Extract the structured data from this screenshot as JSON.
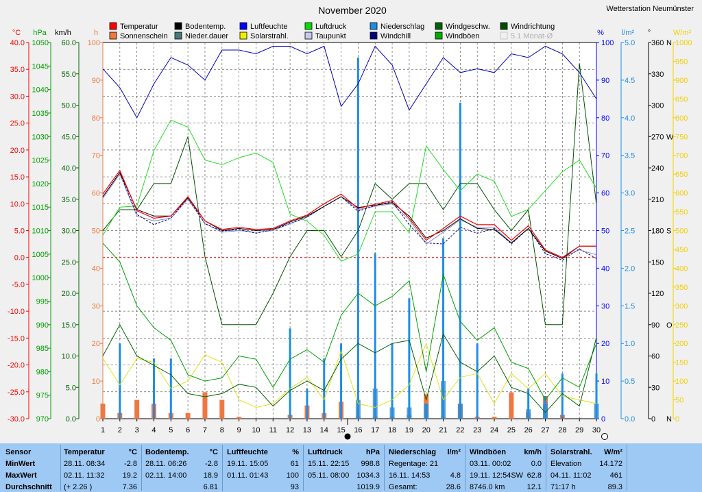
{
  "page": {
    "title": "November 2020",
    "station": "Wetterstation Neumünster"
  },
  "colors": {
    "temperature": "#ff0000",
    "ground_temp": "#000000",
    "humidity": "#0000ff",
    "pressure": "#00d800",
    "precipitation": "#1e8ce6",
    "wind_speed": "#006400",
    "wind_dir": "#004d00",
    "sunshine": "#f07840",
    "dewpoint": "#000080",
    "windchill": "#000080",
    "gusts": "#00aa00",
    "solar": "#f0f000",
    "axis_temp": "#ff0000",
    "axis_pressure": "#00a000",
    "axis_wind": "#006400",
    "axis_hours": "#f07840",
    "axis_humidity": "#0000ff",
    "axis_precip": "#1e8ce6",
    "axis_solar": "#f0d000"
  },
  "legend": [
    {
      "label": "Temperatur",
      "color": "#ff0000",
      "fill": true
    },
    {
      "label": "Bodentemp.",
      "color": "#000000",
      "fill": true
    },
    {
      "label": "Luftfeuchte",
      "color": "#0000ff",
      "fill": true
    },
    {
      "label": "Luftdruck",
      "color": "#00e000",
      "fill": true
    },
    {
      "label": "Niederschlag",
      "color": "#1e8ce6",
      "fill": true
    },
    {
      "label": "Windgeschw.",
      "color": "#006400",
      "fill": true
    },
    {
      "label": "Windrichtung",
      "color": "#004d00",
      "fill": true
    },
    {
      "label": "Sonnenschein",
      "color": "#f07840",
      "fill": true
    },
    {
      "label": "Nieder.dauer",
      "color": "#4a7a7a",
      "fill": true
    },
    {
      "label": "Solarstrahl.",
      "color": "#f0f000",
      "fill": true
    },
    {
      "label": "Taupunkt",
      "color": "#c8c8f0",
      "fill": true
    },
    {
      "label": "Windchill",
      "color": "#000080",
      "fill": true
    },
    {
      "label": "Windböen",
      "color": "#00aa00",
      "fill": true
    },
    {
      "label": "5.1 Monat-Ø",
      "color": "#c0c0c0",
      "fill": false
    }
  ],
  "chart_data": {
    "type": "line",
    "title": "November 2020",
    "x": [
      1,
      2,
      3,
      4,
      5,
      6,
      7,
      8,
      9,
      10,
      11,
      12,
      13,
      14,
      15,
      16,
      17,
      18,
      19,
      20,
      21,
      22,
      23,
      24,
      25,
      26,
      27,
      28,
      29,
      30
    ],
    "grid": true,
    "axes": {
      "temperature": {
        "unit": "°C",
        "range": [
          -30,
          40
        ],
        "step": 5
      },
      "pressure": {
        "unit": "hPa",
        "range": [
          970,
          1050
        ],
        "step": 5
      },
      "wind": {
        "unit": "km/h",
        "range": [
          0,
          60
        ],
        "step": 5
      },
      "hours": {
        "unit": "h",
        "range": [
          0,
          100
        ],
        "step": 10
      },
      "humidity": {
        "unit": "%",
        "range": [
          0,
          100
        ],
        "step": 10
      },
      "precipitation": {
        "unit": "l/m²",
        "range": [
          0,
          5
        ],
        "step": 0.5
      },
      "wind_direction": {
        "unit": "°",
        "range": [
          0,
          360
        ],
        "step": 30,
        "labels": {
          "0": "N",
          "90": "O",
          "180": "S",
          "270": "W",
          "360": "N"
        }
      },
      "solar": {
        "unit": "W/m²",
        "range": [
          0,
          1000
        ],
        "step": 50
      }
    },
    "series": [
      {
        "name": "Temperatur",
        "axis": "temperature",
        "values": [
          11.8,
          16.2,
          8.7,
          7.3,
          7.7,
          11.3,
          6.8,
          5.2,
          5.6,
          5.2,
          5.4,
          6.8,
          7.9,
          10.0,
          11.8,
          9.1,
          9.9,
          10.6,
          7.3,
          3.2,
          5.4,
          7.7,
          6.1,
          6.1,
          3.2,
          5.9,
          1.4,
          0.0,
          2.1,
          2.1
        ]
      },
      {
        "name": "Bodentemp.",
        "axis": "temperature",
        "values": [
          11.3,
          15.8,
          8.9,
          7.7,
          7.7,
          11.1,
          6.8,
          5.0,
          5.4,
          5.0,
          5.2,
          6.6,
          7.7,
          9.5,
          11.3,
          9.3,
          9.7,
          10.2,
          7.7,
          3.6,
          5.0,
          7.2,
          5.4,
          5.2,
          2.7,
          5.4,
          1.2,
          -0.2,
          2.1,
          2.1
        ]
      },
      {
        "name": "Taupunkt",
        "axis": "temperature",
        "values": [
          11.0,
          15.5,
          7.7,
          6.8,
          7.3,
          10.8,
          6.3,
          4.7,
          5.0,
          4.7,
          5.0,
          6.3,
          7.5,
          9.5,
          11.3,
          8.9,
          9.5,
          10.0,
          7.0,
          2.5,
          4.7,
          7.0,
          5.6,
          5.6,
          2.7,
          5.4,
          1.2,
          0.0,
          1.4,
          0.5
        ]
      },
      {
        "name": "Windchill",
        "axis": "temperature",
        "values": [
          11.3,
          15.8,
          8.0,
          6.1,
          7.3,
          11.1,
          6.3,
          4.9,
          5.2,
          4.5,
          5.2,
          6.3,
          7.5,
          9.5,
          11.3,
          8.6,
          9.7,
          10.4,
          6.1,
          2.7,
          2.5,
          5.6,
          4.5,
          5.4,
          2.5,
          5.4,
          0.7,
          -0.5,
          1.6,
          -0.2
        ]
      },
      {
        "name": "Luftfeuchte",
        "axis": "humidity",
        "values": [
          93,
          88,
          80,
          89,
          96,
          94,
          90,
          98,
          98,
          97,
          99,
          99,
          97,
          99,
          83,
          89,
          99,
          94,
          82,
          89,
          96,
          92,
          93,
          92,
          97,
          96,
          99,
          97,
          92,
          85
        ]
      },
      {
        "name": "Luftdruck",
        "axis": "pressure",
        "values": [
          1009.0,
          1015.0,
          1015.2,
          1027.0,
          1033.5,
          1032.0,
          1025.0,
          1024.0,
          1025.5,
          1026.5,
          1024.5,
          1013.5,
          1012.0,
          1009.0,
          1003.5,
          1005.0,
          1014.0,
          1014.0,
          1009.5,
          1028.0,
          1023.0,
          1018.5,
          1022.0,
          1020.5,
          1013.0,
          1014.5,
          1018.5,
          1022.5,
          1025.0,
          1019.0
        ]
      },
      {
        "name": "Windgeschw.",
        "axis": "wind",
        "values": [
          10.0,
          15.0,
          10.0,
          8.5,
          7.0,
          4.0,
          3.5,
          4.0,
          5.5,
          5.0,
          2.0,
          4.5,
          6.0,
          4.5,
          9.5,
          12.0,
          10.5,
          12.0,
          12.5,
          3.0,
          13.5,
          9.0,
          7.5,
          10.0,
          5.0,
          4.0,
          1.0,
          4.0,
          2.0,
          13.0
        ]
      },
      {
        "name": "Windböen",
        "axis": "wind",
        "values": [
          28.0,
          25.0,
          18.0,
          14.5,
          12.5,
          7.0,
          6.0,
          6.5,
          10.0,
          9.5,
          5.0,
          9.5,
          11.0,
          9.0,
          16.5,
          20.0,
          18.0,
          19.5,
          22.0,
          7.5,
          23.0,
          15.5,
          12.5,
          14.5,
          9.0,
          8.0,
          3.0,
          6.5,
          5.0,
          12.0
        ]
      },
      {
        "name": "Windrichtung",
        "axis": "wind_direction",
        "values": [
          180,
          200,
          200,
          225,
          225,
          270,
          155,
          90,
          90,
          90,
          120,
          155,
          180,
          180,
          155,
          180,
          225,
          210,
          225,
          225,
          200,
          225,
          225,
          200,
          180,
          200,
          90,
          90,
          340,
          205
        ]
      },
      {
        "name": "Solarstrahl.",
        "axis": "solar",
        "values": [
          160,
          90,
          160,
          150,
          80,
          100,
          170,
          150,
          50,
          30,
          40,
          80,
          110,
          50,
          180,
          40,
          30,
          50,
          90,
          200,
          50,
          110,
          120,
          40,
          120,
          80,
          120,
          60,
          50,
          40
        ]
      },
      {
        "name": "Sonnenschein",
        "axis": "hours",
        "values": [
          4.0,
          1.5,
          5.0,
          4.0,
          1.5,
          1.5,
          7.0,
          5.0,
          0.5,
          0,
          0,
          1.0,
          3.5,
          1.5,
          4.5,
          0.5,
          0.5,
          0.5,
          1.0,
          6.5,
          0.5,
          4.0,
          0.5,
          0.5,
          7.0,
          1.5,
          6.0,
          1.0,
          0,
          0
        ]
      },
      {
        "name": "Nieder.dauer",
        "axis": "hours",
        "values": [
          0,
          0,
          0,
          0,
          0,
          0,
          0,
          0,
          0,
          0,
          0,
          0,
          0,
          0,
          0,
          5.0,
          8.0,
          3.0,
          3.0,
          4.0,
          10.0,
          4.0,
          0,
          0,
          0,
          2.5,
          4.0,
          0,
          0,
          4.0
        ]
      },
      {
        "name": "Niederschlag",
        "axis": "precipitation",
        "values": [
          0,
          1.0,
          0,
          0.8,
          0.8,
          0,
          0,
          0,
          0,
          0,
          0,
          1.2,
          0.4,
          0.8,
          1.0,
          4.8,
          2.2,
          1.0,
          1.6,
          0.2,
          2.4,
          4.2,
          1.0,
          0,
          0,
          0.4,
          0.3,
          0.6,
          0,
          0.6
        ]
      }
    ]
  },
  "table": {
    "row_labels": [
      "Sensor",
      "MinWert",
      "MaxWert",
      "Durchschnitt"
    ],
    "columns": [
      {
        "header": "Temperatur",
        "unit": "°C",
        "rows": [
          [
            "28.11.  08:34",
            "-2.8"
          ],
          [
            "02.11.  11:32",
            "19.2"
          ],
          [
            "(+ 2.26 )",
            "7.36"
          ]
        ]
      },
      {
        "header": "Bodentemp.",
        "unit": "°C",
        "rows": [
          [
            "28.11.  06:26",
            "-2.8"
          ],
          [
            "02.11.  14:00",
            "18.9"
          ],
          [
            "",
            "6.81"
          ]
        ]
      },
      {
        "header": "Luftfeuchte",
        "unit": "%",
        "rows": [
          [
            "19.11.  15:05",
            "61"
          ],
          [
            "01.11.  01:43",
            "100"
          ],
          [
            "",
            "93"
          ]
        ]
      },
      {
        "header": "Luftdruck",
        "unit": "hPa",
        "rows": [
          [
            "15.11.  22:15",
            "998.8"
          ],
          [
            "05.11.  08:00",
            "1034.3"
          ],
          [
            "",
            "1019.9"
          ]
        ]
      },
      {
        "header": "Niederschlag",
        "unit": "l/m²",
        "rows": [
          [
            "Regentage: 21",
            ""
          ],
          [
            "16.11.  14:53",
            "4.8"
          ],
          [
            "Gesamt:",
            "28.6"
          ]
        ]
      },
      {
        "header": "Windböen",
        "unit": "km/h",
        "rows": [
          [
            "03.11.  00:02",
            "0.0"
          ],
          [
            "19.11.  12:54SW",
            "62.8"
          ],
          [
            "8746.0 km",
            "12.1"
          ]
        ]
      },
      {
        "header": "Solarstrahl.",
        "unit": "W/m²",
        "rows": [
          [
            "Elevation",
            "14.172"
          ],
          [
            "04.11.  11:02",
            "461"
          ],
          [
            "71:17 h",
            "89.3"
          ]
        ]
      }
    ]
  }
}
